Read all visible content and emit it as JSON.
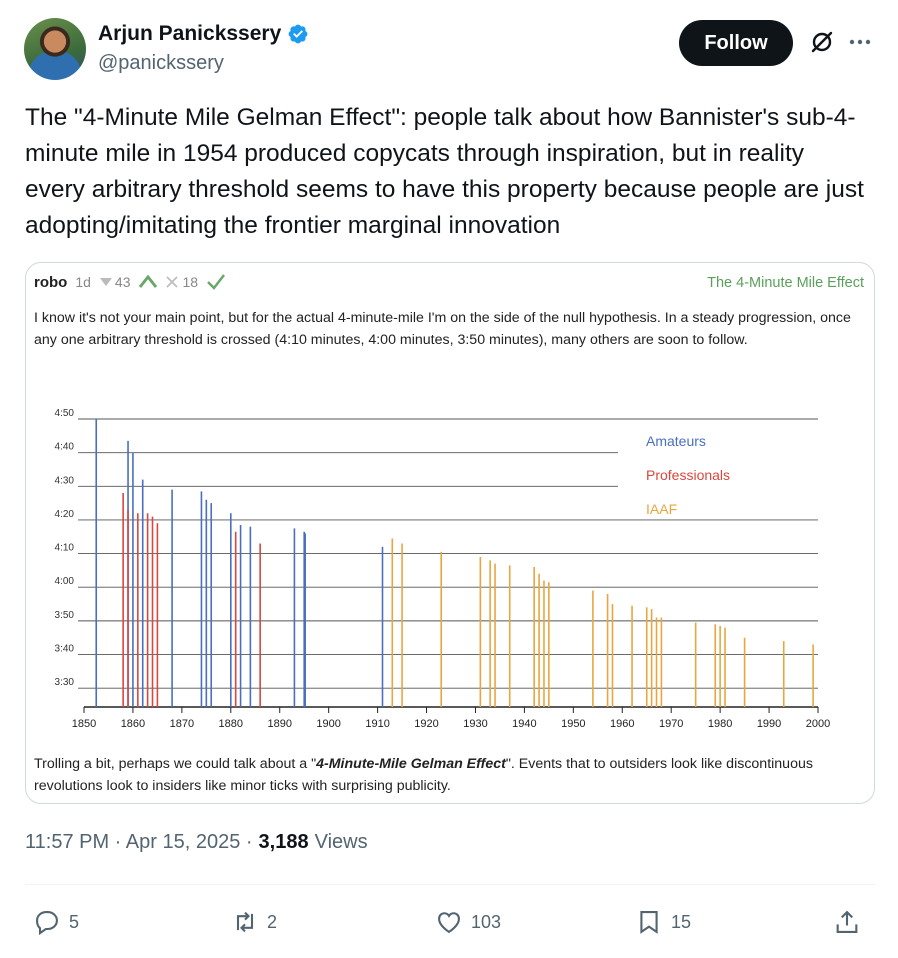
{
  "author": {
    "name": "Arjun Panickssery",
    "handle": "@panickssery",
    "verified": true,
    "verified_color": "#1d9bf0"
  },
  "follow_label": "Follow",
  "tweet_text": "The \"4-Minute Mile Gelman Effect\": people talk about how Bannister's sub-4-minute mile in 1954 produced copycats through inspiration, but in reality every arbitrary threshold seems to have this property because people are just adopting/imitating the frontier marginal innovation",
  "media": {
    "comment_user": "robo",
    "comment_age": "1d",
    "downvotes": "43",
    "agree_votes": "18",
    "comment_title": "The 4-Minute Mile Effect",
    "comment_body": "I know it's not your main point, but for the actual 4-minute-mile I'm on the side of the null hypothesis.  In a steady progression, once any one arbitrary threshold is crossed (4:10 minutes, 4:00 minutes, 3:50 minutes), many others are soon to follow.",
    "comment_footer_pre": "Trolling a bit, perhaps we could talk about a \"",
    "comment_footer_em": "4-Minute-Mile Gelman Effect",
    "comment_footer_post": "\".  Events that to outsiders look like discontinuous revolutions look to insiders like minor ticks with surprising publicity."
  },
  "chart_data": {
    "type": "bar",
    "title": "",
    "xlabel": "",
    "ylabel": "",
    "xlim": [
      1850,
      2000
    ],
    "ylim_seconds": [
      205,
      290
    ],
    "x_ticks": [
      "1850",
      "1860",
      "1870",
      "1880",
      "1890",
      "1900",
      "1910",
      "1920",
      "1930",
      "1940",
      "1950",
      "1960",
      "1970",
      "1980",
      "1990",
      "2000"
    ],
    "y_ticks": [
      "4:50",
      "4:40",
      "4:30",
      "4:20",
      "4:10",
      "4:00",
      "3:50",
      "3:40",
      "3:30"
    ],
    "legend": [
      {
        "name": "Amateurs",
        "color": "#4a6fc0"
      },
      {
        "name": "Professionals",
        "color": "#d9473e"
      },
      {
        "name": "IAAF",
        "color": "#e9a640"
      }
    ],
    "series": [
      {
        "name": "Amateurs",
        "color": "#4a6fc0",
        "points": [
          [
            1852.5,
            290
          ],
          [
            1859,
            283.5
          ],
          [
            1860,
            280
          ],
          [
            1862,
            272
          ],
          [
            1868,
            269
          ],
          [
            1874,
            268.5
          ],
          [
            1875,
            266
          ],
          [
            1876,
            265
          ],
          [
            1880,
            262
          ],
          [
            1882,
            258.5
          ],
          [
            1884,
            258
          ],
          [
            1893,
            257.5
          ],
          [
            1895,
            256.5
          ],
          [
            1895.2,
            256
          ],
          [
            1911,
            252
          ]
        ]
      },
      {
        "name": "Professionals",
        "color": "#d9473e",
        "points": [
          [
            1858,
            268
          ],
          [
            1859,
            263
          ],
          [
            1861,
            262
          ],
          [
            1863,
            262
          ],
          [
            1864,
            261
          ],
          [
            1865,
            259
          ],
          [
            1881,
            256.5
          ],
          [
            1886,
            253
          ]
        ]
      },
      {
        "name": "IAAF",
        "color": "#e9a640",
        "points": [
          [
            1913,
            254.5
          ],
          [
            1915,
            253
          ],
          [
            1923,
            250.5
          ],
          [
            1931,
            249
          ],
          [
            1933,
            248
          ],
          [
            1934,
            247
          ],
          [
            1937,
            246.5
          ],
          [
            1942,
            246
          ],
          [
            1943,
            244
          ],
          [
            1944,
            242
          ],
          [
            1945,
            241.5
          ],
          [
            1954,
            239
          ],
          [
            1957,
            238
          ],
          [
            1958,
            235
          ],
          [
            1962,
            234.5
          ],
          [
            1965,
            234
          ],
          [
            1966,
            233.5
          ],
          [
            1967,
            231
          ],
          [
            1968,
            231
          ],
          [
            1975,
            229.5
          ],
          [
            1979,
            229
          ],
          [
            1980,
            228.5
          ],
          [
            1981,
            228
          ],
          [
            1985,
            225
          ],
          [
            1993,
            224
          ],
          [
            1999,
            223
          ]
        ]
      }
    ]
  },
  "timestamp": "11:57 PM · Apr 15, 2025 ·",
  "views_count": "3,188",
  "views_label": "Views",
  "actions": {
    "replies": "5",
    "reposts": "2",
    "likes": "103",
    "bookmarks": "15"
  },
  "colors": {
    "text_secondary": "#536471",
    "amateur": "#4a6fc0",
    "professional": "#d9473e",
    "iaaf": "#e9a640"
  },
  "icons": [
    "verified-badge-icon",
    "grok-icon",
    "more-icon",
    "reply-icon",
    "repost-icon",
    "like-icon",
    "bookmark-icon",
    "share-icon",
    "downvote-icon",
    "upvote-icon",
    "x-icon",
    "check-icon"
  ]
}
